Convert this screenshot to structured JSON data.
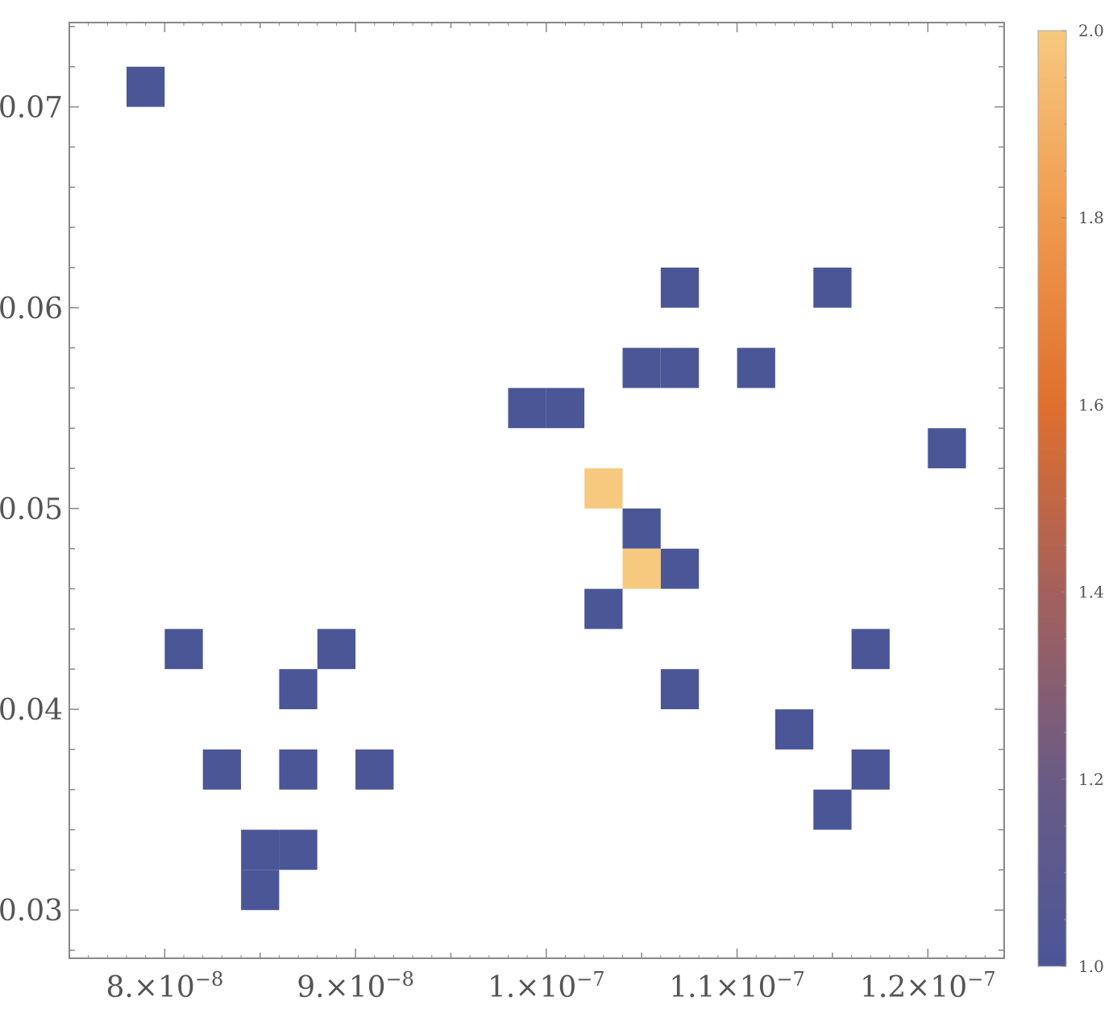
{
  "chart_data": {
    "type": "heatmap",
    "x_bin_width": 2e-09,
    "y_bin_width": 0.002,
    "xlim": [
      7.5e-08,
      1.24e-07
    ],
    "ylim": [
      0.0276,
      0.0742
    ],
    "x_ticks": [
      {
        "value": 8e-08,
        "mantissa": "8.",
        "exponent": "−8"
      },
      {
        "value": 9e-08,
        "mantissa": "9.",
        "exponent": "−8"
      },
      {
        "value": 1e-07,
        "mantissa": "1.",
        "exponent": "−7"
      },
      {
        "value": 1.1e-07,
        "mantissa": "1.1",
        "exponent": "−7"
      },
      {
        "value": 1.2e-07,
        "mantissa": "1.2",
        "exponent": "−7"
      }
    ],
    "x_tick_times": "×10",
    "y_ticks": [
      "0.03",
      "0.04",
      "0.05",
      "0.06",
      "0.07"
    ],
    "colorbar": {
      "range": [
        1.0,
        2.0
      ],
      "ticks": [
        "1.0",
        "1.2",
        "1.4",
        "1.6",
        "1.8",
        "2.0"
      ],
      "colors": [
        "#4b5697",
        "#6a5b86",
        "#a5605b",
        "#df6f2d",
        "#f09a4e",
        "#f6c97f"
      ]
    },
    "cells": [
      {
        "x": 7.8e-08,
        "y": 0.07,
        "count": 1
      },
      {
        "x": 8e-08,
        "y": 0.042,
        "count": 1
      },
      {
        "x": 8.2e-08,
        "y": 0.036,
        "count": 1
      },
      {
        "x": 8.4e-08,
        "y": 0.032,
        "count": 1
      },
      {
        "x": 8.4e-08,
        "y": 0.03,
        "count": 1
      },
      {
        "x": 8.6e-08,
        "y": 0.032,
        "count": 1
      },
      {
        "x": 8.6e-08,
        "y": 0.036,
        "count": 1
      },
      {
        "x": 8.6e-08,
        "y": 0.04,
        "count": 1
      },
      {
        "x": 8.8e-08,
        "y": 0.042,
        "count": 1
      },
      {
        "x": 9e-08,
        "y": 0.036,
        "count": 1
      },
      {
        "x": 9.8e-08,
        "y": 0.054,
        "count": 1
      },
      {
        "x": 1e-07,
        "y": 0.054,
        "count": 1
      },
      {
        "x": 1.02e-07,
        "y": 0.05,
        "count": 2
      },
      {
        "x": 1.02e-07,
        "y": 0.044,
        "count": 1
      },
      {
        "x": 1.04e-07,
        "y": 0.056,
        "count": 1
      },
      {
        "x": 1.04e-07,
        "y": 0.048,
        "count": 1
      },
      {
        "x": 1.04e-07,
        "y": 0.046,
        "count": 2
      },
      {
        "x": 1.06e-07,
        "y": 0.06,
        "count": 1
      },
      {
        "x": 1.06e-07,
        "y": 0.056,
        "count": 1
      },
      {
        "x": 1.06e-07,
        "y": 0.046,
        "count": 1
      },
      {
        "x": 1.06e-07,
        "y": 0.04,
        "count": 1
      },
      {
        "x": 1.1e-07,
        "y": 0.056,
        "count": 1
      },
      {
        "x": 1.12e-07,
        "y": 0.038,
        "count": 1
      },
      {
        "x": 1.14e-07,
        "y": 0.06,
        "count": 1
      },
      {
        "x": 1.14e-07,
        "y": 0.034,
        "count": 1
      },
      {
        "x": 1.16e-07,
        "y": 0.042,
        "count": 1
      },
      {
        "x": 1.16e-07,
        "y": 0.036,
        "count": 1
      },
      {
        "x": 1.2e-07,
        "y": 0.052,
        "count": 1
      }
    ]
  }
}
